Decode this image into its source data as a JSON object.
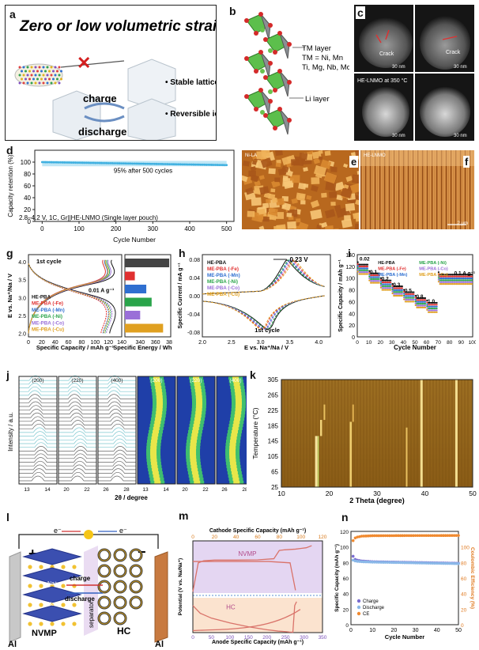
{
  "panels": {
    "a": {
      "label": "a",
      "title": "Zero or low volumetric strain",
      "charge": "charge",
      "discharge": "discharge",
      "bullets": [
        "Stable lattice structures",
        "Reversible ion storage"
      ]
    },
    "b": {
      "label": "b",
      "tm_layer": "TM layer",
      "tm_line1": "TM = Ni, Mn",
      "tm_line2": "Ti, Mg, Nb, Mo",
      "li_layer": "Li layer"
    },
    "c": {
      "label": "c",
      "crack1": "Crack",
      "crack2": "Crack",
      "caption": "HE-LNMO at 350 °C",
      "scale_bars": [
        "30 nm",
        "30 nm",
        "30 nm",
        "30 nm"
      ]
    },
    "d": {
      "label": "d",
      "annotation": "95% after 500 cycles",
      "conditions": "2.8–4.2 V, 1C, Gr||HE-LNMO (Single layer pouch)"
    },
    "e": {
      "label": "e",
      "tag": "Ni-LA"
    },
    "f": {
      "label": "f",
      "tag": "HE-LNMO",
      "scale": "2 μm"
    },
    "g": {
      "label": "g",
      "first_cycle": "1st cycle",
      "rate": "0.01 A g⁻¹",
      "legend": [
        "HE-PBA",
        "ME-PBA (-Fe)",
        "ME-PBA (-Mn)",
        "ME-PBA (-Ni)",
        "ME-PBA (-Co)",
        "ME-PBA (-Cu)"
      ]
    },
    "h": {
      "label": "h",
      "shift": "0.23 V",
      "first_cycle": "1st cycle",
      "legend": [
        "HE-PBA",
        "ME-PBA (-Fe)",
        "ME-PBA (-Mn)",
        "ME-PBA (-Ni)",
        "ME-PBA (-Co)",
        "ME-PBA (-Cu)"
      ]
    },
    "i": {
      "label": "i",
      "legend": [
        "HE-PBA",
        "ME-PBA (-Fe)",
        "ME-PBA (-Mn)",
        "ME-PBA (-Ni)",
        "ME-PBA (-Co)",
        "ME-PBA (-Cu)"
      ],
      "rate_labels": [
        "0.02",
        "0.1",
        "0.2",
        "0.3",
        "0.5",
        "0.8",
        "1.0",
        "0.1 A g⁻¹"
      ]
    },
    "j": {
      "label": "j",
      "ylabel": "Intensity / a.u.",
      "xlabel": "2θ / degree",
      "peaks": [
        "(200)",
        "(220)",
        "(400)",
        "(200)",
        "(220)",
        "(400)"
      ],
      "ticks": [
        "13",
        "14",
        "20",
        "22",
        "26",
        "28",
        "13",
        "14",
        "20",
        "22",
        "26",
        "28"
      ]
    },
    "k": {
      "label": "k",
      "ylabel": "Temperature (°C)",
      "xlabel": "2 Theta (degree)",
      "yticks": [
        "305",
        "265",
        "225",
        "185",
        "145",
        "105",
        "65",
        "25"
      ],
      "xticks": [
        "10",
        "20",
        "30",
        "40",
        "50"
      ]
    },
    "l": {
      "label": "l",
      "electron1": "e⁻",
      "electron2": "e⁻",
      "plus": "+",
      "minus": "−",
      "charge": "charge",
      "discharge": "discharge",
      "separator": "separator",
      "na1": "Na⁺",
      "na2": "Na⁺",
      "cathode": "NVMP",
      "anode": "HC",
      "al_left": "Al",
      "al_right": "Al"
    },
    "m": {
      "label": "m",
      "top_axis": "Cathode Specific Capacity (mAh g⁻¹)",
      "bottom_axis": "Anode Specific Capacity (mAh g⁻¹)",
      "ylabel": "Potential (V vs. Na/Na⁺)",
      "nvmp": "NVMP",
      "hc": "HC",
      "top_ticks": [
        "0",
        "20",
        "40",
        "60",
        "80",
        "100",
        "120"
      ],
      "bottom_ticks": [
        "0",
        "50",
        "100",
        "150",
        "200",
        "250",
        "300",
        "350"
      ],
      "yticks": [
        "4",
        "3",
        "2",
        "1",
        "0"
      ]
    },
    "n": {
      "label": "n",
      "ylabel_left": "Specific Capacity (mAh g⁻¹)",
      "ylabel_right": "Coulombic Efficiency (%)",
      "xlabel": "Cycle Number",
      "legend": [
        "Charge",
        "Discharge",
        "CE"
      ],
      "left_ticks": [
        "120",
        "100",
        "80",
        "60",
        "40",
        "20",
        "0"
      ],
      "right_ticks": [
        "100",
        "80",
        "60",
        "40",
        "20",
        "0"
      ],
      "xticks": [
        "0",
        "10",
        "20",
        "30",
        "40",
        "50"
      ]
    }
  },
  "chart_data": [
    {
      "type": "scatter",
      "panel": "d",
      "xlabel": "Cycle Number",
      "ylabel": "Capacity retention (%)",
      "xlim": [
        -20,
        520
      ],
      "ylim": [
        0,
        120
      ],
      "xticks": [
        0,
        100,
        200,
        300,
        400,
        500
      ],
      "yticks": [
        0,
        20,
        40,
        60,
        80,
        100
      ],
      "series": [
        {
          "x": [
            0,
            50,
            100,
            150,
            200,
            250,
            300,
            350,
            400,
            450,
            500
          ],
          "y": [
            100,
            99.5,
            99,
            98.5,
            98,
            97.5,
            97,
            96.5,
            96,
            95.5,
            95
          ]
        }
      ]
    },
    {
      "type": "line",
      "panel": "g",
      "xlabel": "Specific Capacity / mAh g⁻¹",
      "ylabel": "E vs. Na⁺/Na / V",
      "xlim": [
        0,
        140
      ],
      "ylim": [
        1.9,
        4.2
      ],
      "xticks": [
        0,
        20,
        40,
        60,
        80,
        100,
        120,
        140
      ],
      "yticks": [
        2.0,
        2.5,
        3.0,
        3.5,
        4.0
      ],
      "series": [
        {
          "name": "HE-PBA",
          "end": 125
        },
        {
          "name": "ME-PBA (-Fe)",
          "end": 112
        },
        {
          "name": "ME-PBA (-Mn)",
          "end": 115
        },
        {
          "name": "ME-PBA (-Ni)",
          "end": 118
        },
        {
          "name": "ME-PBA (-Co)",
          "end": 120
        },
        {
          "name": "ME-PBA (-Cu)",
          "end": 116
        }
      ]
    },
    {
      "type": "bar",
      "panel": "g-inset",
      "xlabel": "Specific Energy / Wh kg⁻¹",
      "xlim": [
        320,
        380
      ],
      "xticks": [
        340,
        360,
        380
      ],
      "categories": [
        "HE-PBA",
        "ME-PBA (-Fe)",
        "ME-PBA (-Mn)",
        "ME-PBA (-Ni)",
        "ME-PBA (-Co)",
        "ME-PBA (-Cu)"
      ],
      "values": [
        378,
        333,
        348,
        355,
        340,
        370
      ]
    },
    {
      "type": "line",
      "panel": "h",
      "xlabel": "E vs. Na⁺/Na / V",
      "ylabel": "Specific Current / mA g⁻¹",
      "xlim": [
        2.0,
        4.2
      ],
      "ylim": [
        -0.09,
        0.09
      ],
      "xticks": [
        2.0,
        2.5,
        3.0,
        3.5,
        4.0
      ],
      "yticks": [
        -0.08,
        -0.04,
        0.0,
        0.04,
        0.08
      ],
      "series": [
        {
          "name": "HE-PBA",
          "ox": 3.45,
          "red": 3.22
        },
        {
          "name": "ME-PBA (-Fe)",
          "ox": 3.55,
          "red": 3.12
        },
        {
          "name": "ME-PBA (-Mn)",
          "ox": 3.5,
          "red": 3.15
        },
        {
          "name": "ME-PBA (-Ni)",
          "ox": 3.48,
          "red": 3.2
        },
        {
          "name": "ME-PBA (-Co)",
          "ox": 3.52,
          "red": 3.17
        },
        {
          "name": "ME-PBA (-Cu)",
          "ox": 3.58,
          "red": 3.1
        }
      ]
    },
    {
      "type": "scatter",
      "panel": "i",
      "xlabel": "Cycle Number",
      "ylabel": "Specific Capacity / mAh g⁻¹",
      "xlim": [
        0,
        100
      ],
      "ylim": [
        0,
        140
      ],
      "xticks": [
        0,
        10,
        20,
        30,
        40,
        50,
        60,
        70,
        80,
        90,
        100
      ],
      "yticks": [
        0,
        20,
        40,
        60,
        80,
        100,
        120,
        140
      ],
      "segments": [
        {
          "from": 0,
          "to": 10,
          "value": 115
        },
        {
          "from": 10,
          "to": 20,
          "value": 100
        },
        {
          "from": 20,
          "to": 30,
          "value": 88
        },
        {
          "from": 30,
          "to": 40,
          "value": 78
        },
        {
          "from": 40,
          "to": 50,
          "value": 68
        },
        {
          "from": 50,
          "to": 60,
          "value": 58
        },
        {
          "from": 60,
          "to": 70,
          "value": 50
        },
        {
          "from": 70,
          "to": 100,
          "value": 98
        }
      ]
    },
    {
      "type": "line",
      "panel": "m",
      "series": [
        {
          "name": "NVMP",
          "x_top": [
            0,
            5,
            10,
            20,
            40,
            60,
            75,
            80,
            85,
            95,
            105,
            110
          ],
          "y": [
            1.1,
            3.2,
            3.35,
            3.4,
            3.4,
            3.42,
            3.5,
            4.1,
            4.15,
            4.2,
            4.3,
            4.45
          ]
        },
        {
          "name": "HC",
          "x_bottom": [
            0,
            20,
            50,
            100,
            150,
            200,
            230,
            250,
            260,
            270,
            275,
            280
          ],
          "y": [
            1.4,
            1.0,
            0.75,
            0.5,
            0.3,
            0.15,
            0.08,
            0.05,
            0.03,
            0.02,
            1.4,
            1.6
          ]
        }
      ]
    },
    {
      "type": "scatter",
      "panel": "n",
      "xlim": [
        0,
        50
      ],
      "series": [
        {
          "name": "Charge",
          "x": [
            1,
            2,
            3,
            5,
            10,
            20,
            30,
            40,
            50
          ],
          "y": [
            88,
            84,
            83,
            82,
            81,
            80.5,
            80,
            79.5,
            79
          ]
        },
        {
          "name": "Discharge",
          "x": [
            1,
            2,
            3,
            5,
            10,
            20,
            30,
            40,
            50
          ],
          "y": [
            83,
            82,
            81.5,
            81,
            80.5,
            80,
            79.5,
            79,
            78.5
          ]
        },
        {
          "name": "CE",
          "x": [
            1,
            2,
            3,
            5,
            10,
            20,
            30,
            40,
            50
          ],
          "y": [
            94,
            97,
            98,
            99,
            99.5,
            99.6,
            99.7,
            99.7,
            99.8
          ]
        }
      ]
    }
  ]
}
